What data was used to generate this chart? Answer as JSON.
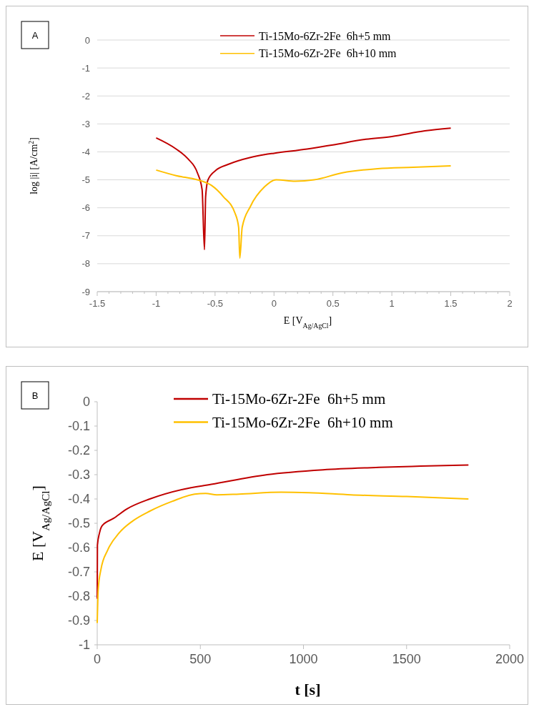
{
  "chart_data": [
    {
      "type": "line",
      "xlabel": "E [V$_{Ag/AgCl}$]",
      "ylabel": "log |i| [A/cm$^{2}$]",
      "annotations": [
        "A"
      ],
      "legend": "top right",
      "grid": "y",
      "xlim": [
        -1.5,
        2
      ],
      "ylim": [
        -9,
        0
      ],
      "xticks": [
        -1.5,
        {
          "value": -1.4,
          "label": null
        },
        {
          "value": -1.3,
          "label": null
        },
        {
          "value": -1.2,
          "label": null
        },
        {
          "value": -1.1,
          "label": null
        },
        -1,
        {
          "value": -0.9,
          "label": null
        },
        {
          "value": -0.8,
          "label": null
        },
        {
          "value": -0.7,
          "label": null
        },
        {
          "value": -0.6,
          "label": null
        },
        -0.5,
        {
          "value": -0.4,
          "label": null
        },
        {
          "value": -0.3,
          "label": null
        },
        {
          "value": -0.2,
          "label": null
        },
        {
          "value": -0.1,
          "label": null
        },
        0,
        {
          "value": 0.1,
          "label": null
        },
        {
          "value": 0.2,
          "label": null
        },
        {
          "value": 0.3,
          "label": null
        },
        {
          "value": 0.4,
          "label": null
        },
        0.5,
        {
          "value": 0.6,
          "label": null
        },
        {
          "value": 0.7,
          "label": null
        },
        {
          "value": 0.8,
          "label": null
        },
        {
          "value": 0.9,
          "label": null
        },
        1,
        {
          "value": 1.1,
          "label": null
        },
        {
          "value": 1.2,
          "label": null
        },
        {
          "value": 1.3,
          "label": null
        },
        {
          "value": 1.4,
          "label": null
        },
        1.5,
        {
          "value": 1.6,
          "label": null
        },
        {
          "value": 1.7,
          "label": null
        },
        {
          "value": 1.8,
          "label": null
        },
        {
          "value": 1.9,
          "label": null
        },
        2
      ],
      "yticks": [
        0,
        -1,
        -2,
        -3,
        -4,
        -5,
        -6,
        -7,
        -8,
        -9
      ],
      "series": [
        {
          "name": "Ti-15Mo-6Zr-2Fe  6h+5 mm",
          "color": "#c00000",
          "x": [
            -1,
            -0.83,
            -0.73,
            -0.65,
            -0.61,
            -0.59,
            -0.58,
            -0.56,
            -0.49,
            -0.39,
            -0.2,
            -0.08,
            0,
            0.28,
            0.5,
            0.78,
            1,
            1.28,
            1.5
          ],
          "values": [
            -3.5,
            -3.9,
            -4.25,
            -4.75,
            -5.35,
            -7.5,
            -5.6,
            -5,
            -4.65,
            -4.45,
            -4.2,
            -4.1,
            -4.05,
            -3.9,
            -3.75,
            -3.55,
            -3.45,
            -3.25,
            -3.15
          ]
        },
        {
          "name": "Ti-15Mo-6Zr-2Fe  6h+10 mm",
          "color": "#ffc000",
          "x": [
            -1,
            -0.83,
            -0.65,
            -0.53,
            -0.43,
            -0.33,
            -0.3,
            -0.29,
            -0.27,
            -0.2,
            -0.08,
            0.02,
            0.18,
            0.34,
            0.58,
            0.88,
            1.18,
            1.5
          ],
          "values": [
            -4.65,
            -4.85,
            -5,
            -5.2,
            -5.6,
            -6.2,
            -6.7,
            -7.8,
            -6.7,
            -5.95,
            -5.25,
            -5,
            -5.05,
            -5,
            -4.75,
            -4.6,
            -4.55,
            -4.5
          ]
        }
      ]
    },
    {
      "type": "line",
      "xlabel": "t [s]",
      "ylabel": "E [V$_{Ag/AgCl}$]",
      "annotations": [
        "B"
      ],
      "legend": "top right",
      "xlim": [
        0,
        2000
      ],
      "ylim": [
        -1,
        0
      ],
      "xticks": [
        0,
        500,
        1000,
        1500,
        2000
      ],
      "yticks": [
        0,
        -0.1,
        -0.2,
        -0.3,
        -0.4,
        -0.5,
        -0.6,
        -0.7,
        -0.8,
        -0.9,
        -1
      ],
      "series": [
        {
          "name": "Ti-15Mo-6Zr-2Fe  6h+5 mm",
          "color": "#c00000",
          "x": [
            0,
            1,
            11,
            24,
            79,
            146,
            255,
            417,
            553,
            824,
            1095,
            1366,
            1569,
            1800
          ],
          "values": [
            -0.81,
            -0.59,
            -0.54,
            -0.51,
            -0.48,
            -0.44,
            -0.4,
            -0.36,
            -0.34,
            -0.3,
            -0.28,
            -0.27,
            -0.265,
            -0.26
          ]
        },
        {
          "name": "Ti-15Mo-6Zr-2Fe  6h+10 mm",
          "color": "#ffc000",
          "x": [
            0,
            5,
            18,
            51,
            106,
            173,
            255,
            363,
            472,
            526,
            580,
            688,
            892,
            1027,
            1230,
            1501,
            1800
          ],
          "values": [
            -0.91,
            -0.77,
            -0.69,
            -0.61,
            -0.54,
            -0.49,
            -0.45,
            -0.41,
            -0.38,
            -0.377,
            -0.383,
            -0.38,
            -0.372,
            -0.374,
            -0.383,
            -0.39,
            -0.4
          ]
        }
      ]
    }
  ]
}
